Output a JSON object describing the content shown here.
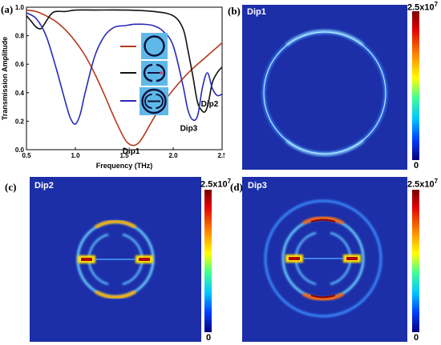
{
  "panels": {
    "a": "(a)",
    "b": "(b)",
    "c": "(c)",
    "d": "(d)"
  },
  "field_maps": {
    "b_title": "Dip1",
    "c_title": "Dip2",
    "d_title": "Dip3",
    "colorbar_max": "2.5x10",
    "colorbar_exp": "7",
    "colorbar_min": "0"
  },
  "colors": {
    "field_background": "#1c2fa8",
    "series_red": "#b33a1e",
    "series_black": "#111111",
    "series_blue": "#2a2ab8"
  },
  "chart_data": {
    "type": "line",
    "title": "",
    "xlabel": "Frequency (THz)",
    "ylabel": "Transmission Amplitude",
    "xlim": [
      0.5,
      2.5
    ],
    "ylim": [
      0.0,
      1.0
    ],
    "xticks": [
      "0.5",
      "1.0",
      "1.5",
      "2.0",
      "2.5"
    ],
    "yticks": [
      "0.0",
      "0.2",
      "0.4",
      "0.6",
      "0.8",
      "1.0"
    ],
    "series": [
      {
        "color": "#b33a1e",
        "icon": "ring-resonator-icon",
        "x": [
          0.5,
          0.6,
          0.7,
          0.8,
          0.9,
          1.0,
          1.1,
          1.2,
          1.3,
          1.4,
          1.5,
          1.55,
          1.6,
          1.65,
          1.7,
          1.8,
          1.9,
          2.0,
          2.1,
          2.2,
          2.3,
          2.4,
          2.5
        ],
        "y": [
          0.98,
          0.97,
          0.94,
          0.9,
          0.84,
          0.76,
          0.66,
          0.53,
          0.38,
          0.22,
          0.08,
          0.04,
          0.03,
          0.05,
          0.1,
          0.22,
          0.33,
          0.42,
          0.5,
          0.57,
          0.63,
          0.69,
          0.75
        ]
      },
      {
        "color": "#111111",
        "icon": "split-ring-bar-icon",
        "x": [
          0.5,
          0.55,
          0.6,
          0.65,
          0.7,
          0.75,
          0.8,
          0.9,
          1.0,
          1.2,
          1.5,
          1.8,
          2.0,
          2.1,
          2.15,
          2.2,
          2.25,
          2.3,
          2.33,
          2.36,
          2.4,
          2.45,
          2.5
        ],
        "y": [
          0.94,
          0.9,
          0.86,
          0.85,
          0.9,
          0.95,
          0.97,
          0.97,
          0.98,
          0.98,
          0.98,
          0.97,
          0.94,
          0.85,
          0.7,
          0.52,
          0.33,
          0.27,
          0.27,
          0.33,
          0.47,
          0.54,
          0.58
        ]
      },
      {
        "color": "#2a2ab8",
        "icon": "ring-with-split-ring-icon",
        "x": [
          0.5,
          0.6,
          0.7,
          0.8,
          0.9,
          0.95,
          1.0,
          1.05,
          1.1,
          1.2,
          1.3,
          1.4,
          1.5,
          1.6,
          1.7,
          1.8,
          1.9,
          2.0,
          2.1,
          2.15,
          2.2,
          2.25,
          2.3,
          2.35,
          2.4,
          2.45,
          2.5
        ],
        "y": [
          0.96,
          0.92,
          0.8,
          0.58,
          0.33,
          0.22,
          0.18,
          0.25,
          0.4,
          0.66,
          0.8,
          0.86,
          0.87,
          0.88,
          0.88,
          0.87,
          0.83,
          0.73,
          0.45,
          0.28,
          0.21,
          0.24,
          0.44,
          0.54,
          0.43,
          0.38,
          0.39
        ]
      }
    ],
    "annotations": [
      {
        "text": "Dip1",
        "x": 1.57,
        "y": 0.04
      },
      {
        "text": "Dip2",
        "x": 2.34,
        "y": 0.27
      },
      {
        "text": "Dip3",
        "x": 2.2,
        "y": 0.21
      }
    ]
  }
}
